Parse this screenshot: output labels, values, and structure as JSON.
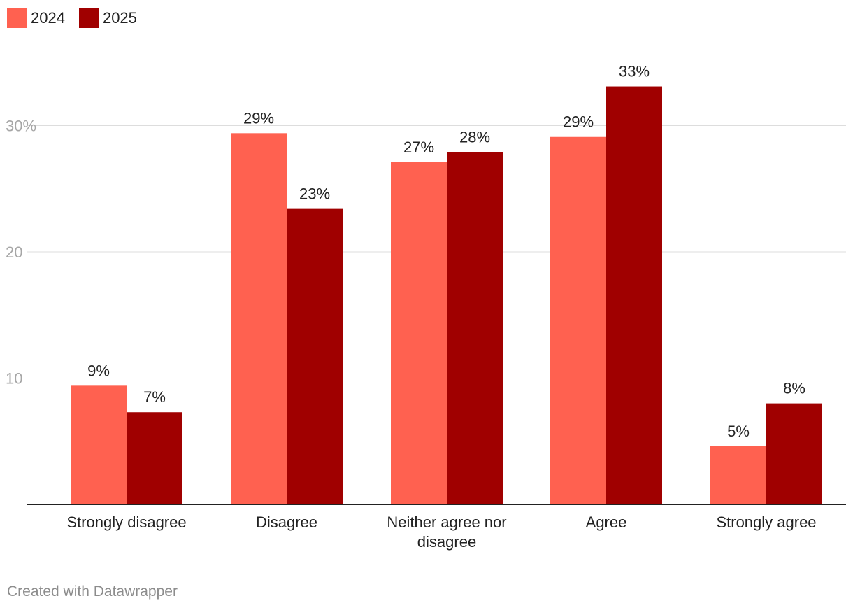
{
  "chart_data": {
    "type": "bar",
    "categories": [
      "Strongly disagree",
      "Disagree",
      "Neither agree nor disagree",
      "Agree",
      "Strongly agree"
    ],
    "series": [
      {
        "name": "2024",
        "color": "#ff6150",
        "values": [
          9.4,
          29.4,
          27.1,
          29.1,
          4.6
        ],
        "labels": [
          "9%",
          "29%",
          "27%",
          "29%",
          "5%"
        ]
      },
      {
        "name": "2025",
        "color": "#a00000",
        "values": [
          7.3,
          23.4,
          27.9,
          33.1,
          8.0
        ],
        "labels": [
          "7%",
          "23%",
          "28%",
          "33%",
          "8%"
        ]
      }
    ],
    "yticks": [
      {
        "value": 10,
        "label": "10"
      },
      {
        "value": 20,
        "label": "20"
      },
      {
        "value": 30,
        "label": "30%"
      }
    ],
    "ylim": [
      0,
      36
    ],
    "grid": true,
    "legend_position": "top-left"
  },
  "credit": "Created with Datawrapper"
}
